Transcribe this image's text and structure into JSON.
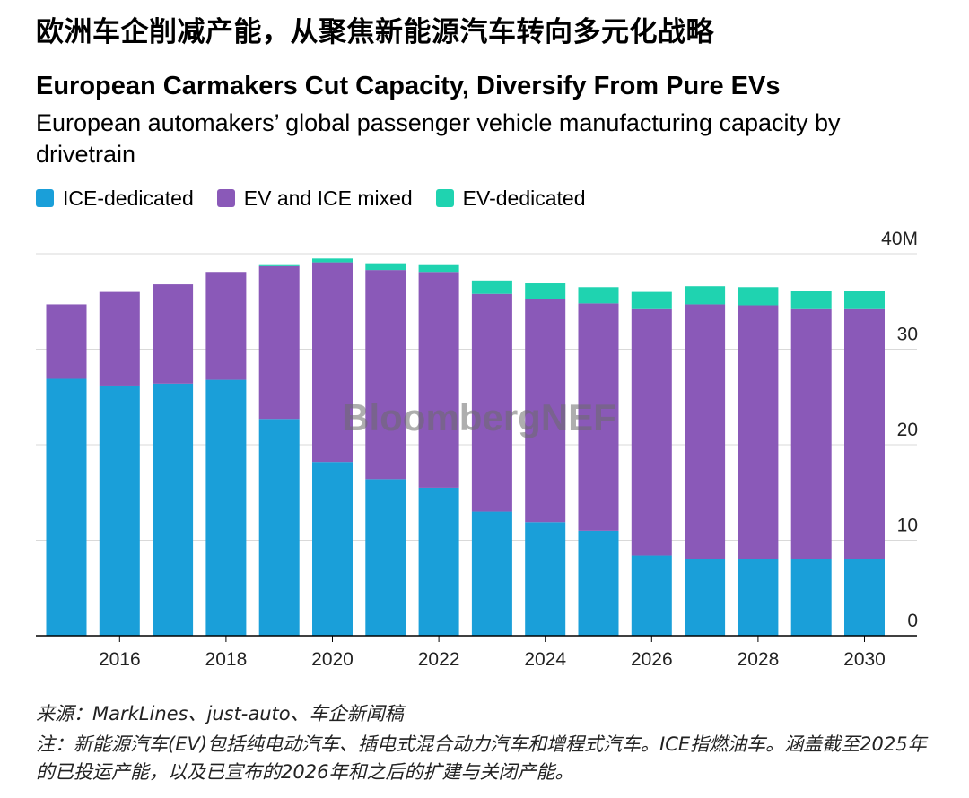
{
  "header": {
    "cn_title": "欧洲车企削减产能，从聚焦新能源汽车转向多元化战略"
  },
  "chart_data": {
    "type": "bar",
    "stacked": true,
    "title": "European Carmakers Cut Capacity, Diversify From Pure EVs",
    "subtitle": "European automakers’ global passenger vehicle manufacturing capacity by drivetrain",
    "x": [
      2015,
      2016,
      2017,
      2018,
      2019,
      2020,
      2021,
      2022,
      2023,
      2024,
      2025,
      2026,
      2027,
      2028,
      2029,
      2030
    ],
    "x_tick_labels": [
      "2016",
      "2018",
      "2020",
      "2022",
      "2024",
      "2026",
      "2028",
      "2030"
    ],
    "x_tick_values": [
      2016,
      2018,
      2020,
      2022,
      2024,
      2026,
      2028,
      2030
    ],
    "y_tick_labels": [
      "0",
      "10",
      "20",
      "30",
      "40M"
    ],
    "y_tick_values": [
      0,
      10,
      20,
      30,
      40
    ],
    "ylim": [
      0,
      40
    ],
    "legend_position": "top-left",
    "grid": true,
    "watermark": "BloombergNEF",
    "series": [
      {
        "name": "ICE-dedicated",
        "color": "#1a9fd9",
        "values": [
          26.9,
          26.2,
          26.4,
          26.8,
          22.7,
          18.2,
          16.4,
          15.5,
          13.0,
          11.9,
          11.0,
          8.4,
          8.0,
          8.0,
          8.0,
          8.0
        ]
      },
      {
        "name": "EV and ICE mixed",
        "color": "#8a59b8",
        "values": [
          7.8,
          9.8,
          10.4,
          11.3,
          16.0,
          20.9,
          21.9,
          22.6,
          22.8,
          23.4,
          23.8,
          25.8,
          26.7,
          26.6,
          26.2,
          26.2
        ]
      },
      {
        "name": "EV-dedicated",
        "color": "#1fd3b0",
        "values": [
          0.0,
          0.0,
          0.0,
          0.0,
          0.2,
          0.4,
          0.7,
          0.8,
          1.4,
          1.6,
          1.7,
          1.8,
          1.9,
          1.9,
          1.9,
          1.9
        ]
      }
    ]
  },
  "footer": {
    "source": "来源：MarkLines、just-auto、车企新闻稿",
    "note": "注：新能源汽车(EV)包括纯电动汽车、插电式混合动力汽车和增程式汽车。ICE指燃油车。涵盖截至2025年的已投运产能，以及已宣布的2026年和之后的扩建与关闭产能。"
  }
}
